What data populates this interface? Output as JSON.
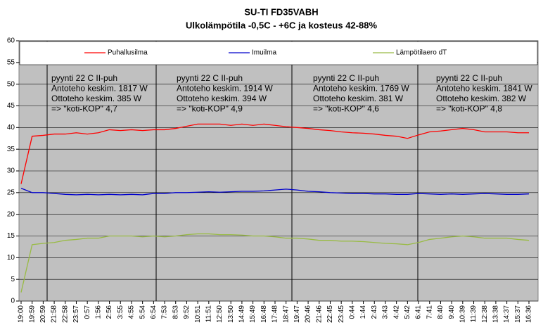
{
  "chart_data": {
    "type": "line",
    "title": "SU-TI FD35VABH",
    "subtitle": "Ulkolämpötila -0,5C - +6C ja kosteus 42-88%",
    "categories": [
      "19:00",
      "19:59",
      "20:59",
      "21:58",
      "22:58",
      "23:57",
      "0:57",
      "1:56",
      "2:56",
      "3:55",
      "4:55",
      "5:54",
      "6:54",
      "7:53",
      "8:53",
      "9:52",
      "10:51",
      "11:51",
      "12:50",
      "13:50",
      "14:49",
      "15:49",
      "16:48",
      "17:48",
      "18:47",
      "19:47",
      "20:46",
      "21:46",
      "22:45",
      "23:45",
      "0:44",
      "1:44",
      "2:43",
      "3:43",
      "4:42",
      "5:42",
      "6:41",
      "7:41",
      "8:40",
      "9:40",
      "10:39",
      "11:39",
      "12:38",
      "13:38",
      "14:37",
      "15:37",
      "16:36"
    ],
    "series": [
      {
        "name": "Puhallusilma",
        "color": "#ff0000",
        "values": [
          27,
          38,
          38.2,
          38.5,
          38.5,
          38.8,
          38.5,
          38.8,
          39.5,
          39.3,
          39.5,
          39.3,
          39.5,
          39.5,
          39.8,
          40.3,
          40.8,
          40.8,
          40.8,
          40.5,
          40.8,
          40.5,
          40.8,
          40.5,
          40.2,
          40,
          39.8,
          39.5,
          39.3,
          39,
          38.8,
          38.7,
          38.5,
          38.2,
          38,
          37.5,
          38.3,
          39,
          39.2,
          39.5,
          39.8,
          39.5,
          39,
          39,
          39,
          38.8,
          38.8
        ]
      },
      {
        "name": "Imuilma",
        "color": "#0000cc",
        "values": [
          26,
          25,
          25,
          24.8,
          24.6,
          24.5,
          24.6,
          24.5,
          24.6,
          24.5,
          24.6,
          24.5,
          24.8,
          24.8,
          25,
          25,
          25.1,
          25.2,
          25.1,
          25.2,
          25.3,
          25.3,
          25.4,
          25.6,
          25.8,
          25.6,
          25.3,
          25.2,
          25,
          24.9,
          24.8,
          24.8,
          24.7,
          24.7,
          24.6,
          24.6,
          24.8,
          24.7,
          24.6,
          24.7,
          24.6,
          24.7,
          24.8,
          24.7,
          24.6,
          24.6,
          24.7
        ]
      },
      {
        "name": "Lämpötilaero dT",
        "color": "#99bb44",
        "values": [
          2,
          13,
          13.3,
          13.5,
          14,
          14.2,
          14.5,
          14.5,
          15,
          15,
          15,
          14.8,
          15,
          14.8,
          15,
          15.3,
          15.5,
          15.5,
          15.3,
          15.3,
          15.2,
          15,
          15,
          14.8,
          14.5,
          14.5,
          14.3,
          14,
          14,
          13.8,
          13.8,
          13.7,
          13.5,
          13.3,
          13.2,
          13,
          13.5,
          14.2,
          14.5,
          14.8,
          15,
          14.8,
          14.5,
          14.5,
          14.5,
          14.2,
          14
        ]
      }
    ],
    "annotations": [
      {
        "lines": [
          "pyynti 22 C II-puh",
          "Antoteho keskim. 1817 W",
          "Ottoteho keskim. 385 W",
          "=> \"koti-KOP\" 4,7"
        ]
      },
      {
        "lines": [
          "pyynti 22 C II-puh",
          "Antoteho keskim. 1914 W",
          "Ottoteho keskim. 394 W",
          "=> \"koti-KOP\" 4,9"
        ]
      },
      {
        "lines": [
          "pyynti 22 C II-puh",
          "Antoteho keskim. 1769 W",
          "Ottoteho keskim. 381 W",
          "=> \"koti-KOP\" 4,6"
        ]
      },
      {
        "lines": [
          "pyynti 22 C II-puh",
          "Antoteho keskim. 1841 W",
          "Ottoteho keskim. 382 W",
          "=> \"koti-KOP\" 4,8"
        ]
      }
    ],
    "ylim": [
      0,
      60
    ],
    "yticks": [
      0,
      5,
      10,
      15,
      20,
      25,
      30,
      35,
      40,
      45,
      50,
      55,
      60
    ],
    "grid": true,
    "plot_background": "#c0c0c0"
  }
}
